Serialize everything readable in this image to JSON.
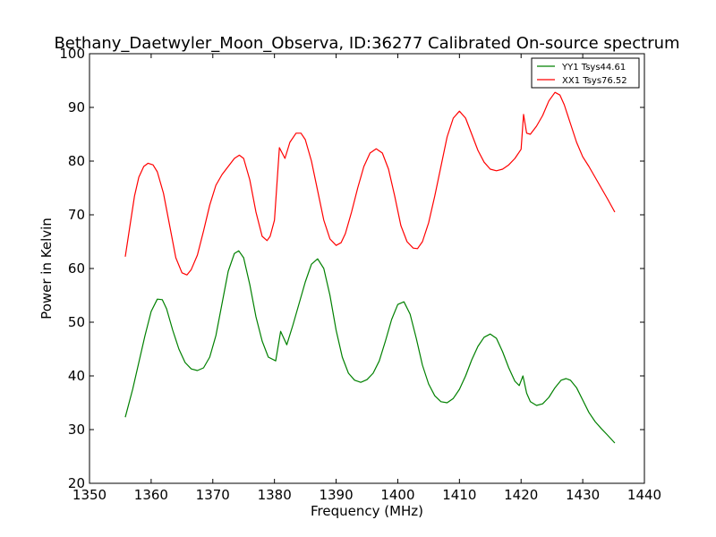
{
  "chart_data": {
    "type": "line",
    "title": "Bethany_Daetwyler_Moon_Observa, ID:36277 Calibrated On-source spectrum",
    "xlabel": "Frequency (MHz)",
    "ylabel": "Power in Kelvin",
    "xlim": [
      1350,
      1440
    ],
    "ylim": [
      20,
      100
    ],
    "xticks": [
      1350,
      1360,
      1370,
      1380,
      1390,
      1400,
      1410,
      1420,
      1430,
      1440
    ],
    "yticks": [
      20,
      30,
      40,
      50,
      60,
      70,
      80,
      90,
      100
    ],
    "grid": false,
    "legend_position": "top-right",
    "series": [
      {
        "name": "YY1 Tsys44.61",
        "color": "#008000",
        "points": [
          [
            1355.8,
            32.3
          ],
          [
            1357.0,
            37.5
          ],
          [
            1358.0,
            42.5
          ],
          [
            1359.0,
            47.5
          ],
          [
            1360.0,
            52.0
          ],
          [
            1361.0,
            54.3
          ],
          [
            1361.8,
            54.2
          ],
          [
            1362.5,
            52.5
          ],
          [
            1363.5,
            48.5
          ],
          [
            1364.5,
            45.0
          ],
          [
            1365.5,
            42.5
          ],
          [
            1366.5,
            41.3
          ],
          [
            1367.5,
            41.0
          ],
          [
            1368.5,
            41.5
          ],
          [
            1369.5,
            43.5
          ],
          [
            1370.5,
            47.5
          ],
          [
            1371.5,
            53.5
          ],
          [
            1372.5,
            59.5
          ],
          [
            1373.5,
            62.8
          ],
          [
            1374.2,
            63.3
          ],
          [
            1375.0,
            62.0
          ],
          [
            1376.0,
            57.0
          ],
          [
            1377.0,
            51.0
          ],
          [
            1378.0,
            46.5
          ],
          [
            1379.0,
            43.5
          ],
          [
            1380.2,
            42.8
          ],
          [
            1381.0,
            48.3
          ],
          [
            1382.0,
            45.8
          ],
          [
            1383.0,
            49.5
          ],
          [
            1384.0,
            53.5
          ],
          [
            1385.0,
            57.5
          ],
          [
            1386.0,
            60.8
          ],
          [
            1387.0,
            61.8
          ],
          [
            1388.0,
            60.0
          ],
          [
            1389.0,
            55.0
          ],
          [
            1390.0,
            48.5
          ],
          [
            1391.0,
            43.5
          ],
          [
            1392.0,
            40.5
          ],
          [
            1393.0,
            39.2
          ],
          [
            1394.0,
            38.8
          ],
          [
            1395.0,
            39.3
          ],
          [
            1396.0,
            40.5
          ],
          [
            1397.0,
            42.8
          ],
          [
            1398.0,
            46.5
          ],
          [
            1399.0,
            50.5
          ],
          [
            1400.0,
            53.3
          ],
          [
            1401.0,
            53.8
          ],
          [
            1402.0,
            51.5
          ],
          [
            1403.0,
            47.0
          ],
          [
            1404.0,
            42.0
          ],
          [
            1405.0,
            38.5
          ],
          [
            1406.0,
            36.3
          ],
          [
            1407.0,
            35.2
          ],
          [
            1408.0,
            35.0
          ],
          [
            1409.0,
            35.8
          ],
          [
            1410.0,
            37.5
          ],
          [
            1411.0,
            40.0
          ],
          [
            1412.0,
            43.0
          ],
          [
            1413.0,
            45.5
          ],
          [
            1414.0,
            47.2
          ],
          [
            1415.0,
            47.8
          ],
          [
            1416.0,
            47.0
          ],
          [
            1417.0,
            44.5
          ],
          [
            1418.0,
            41.5
          ],
          [
            1419.0,
            39.0
          ],
          [
            1419.7,
            38.2
          ],
          [
            1420.3,
            40.0
          ],
          [
            1420.9,
            36.8
          ],
          [
            1421.5,
            35.2
          ],
          [
            1422.5,
            34.5
          ],
          [
            1423.5,
            34.8
          ],
          [
            1424.5,
            36.0
          ],
          [
            1425.5,
            37.8
          ],
          [
            1426.5,
            39.2
          ],
          [
            1427.3,
            39.5
          ],
          [
            1428.0,
            39.2
          ],
          [
            1429.0,
            37.8
          ],
          [
            1430.0,
            35.5
          ],
          [
            1431.0,
            33.2
          ],
          [
            1432.0,
            31.5
          ],
          [
            1433.0,
            30.2
          ],
          [
            1434.0,
            29.0
          ],
          [
            1435.2,
            27.5
          ]
        ]
      },
      {
        "name": "XX1 Tsys76.52",
        "color": "#ff0000",
        "points": [
          [
            1355.8,
            62.2
          ],
          [
            1356.5,
            67.5
          ],
          [
            1357.3,
            73.5
          ],
          [
            1358.0,
            77.0
          ],
          [
            1358.8,
            79.0
          ],
          [
            1359.5,
            79.6
          ],
          [
            1360.3,
            79.3
          ],
          [
            1361.0,
            78.0
          ],
          [
            1362.0,
            74.0
          ],
          [
            1363.0,
            68.0
          ],
          [
            1364.0,
            62.0
          ],
          [
            1365.0,
            59.2
          ],
          [
            1365.8,
            58.8
          ],
          [
            1366.5,
            59.8
          ],
          [
            1367.5,
            62.5
          ],
          [
            1368.5,
            67.0
          ],
          [
            1369.5,
            71.8
          ],
          [
            1370.5,
            75.5
          ],
          [
            1371.5,
            77.5
          ],
          [
            1372.5,
            79.0
          ],
          [
            1373.5,
            80.5
          ],
          [
            1374.3,
            81.1
          ],
          [
            1375.0,
            80.5
          ],
          [
            1376.0,
            76.5
          ],
          [
            1377.0,
            70.5
          ],
          [
            1378.0,
            66.0
          ],
          [
            1378.8,
            65.2
          ],
          [
            1379.3,
            66.0
          ],
          [
            1380.0,
            69.0
          ],
          [
            1380.8,
            82.5
          ],
          [
            1381.7,
            80.5
          ],
          [
            1382.5,
            83.5
          ],
          [
            1383.5,
            85.2
          ],
          [
            1384.3,
            85.2
          ],
          [
            1385.0,
            84.0
          ],
          [
            1386.0,
            80.0
          ],
          [
            1387.0,
            74.5
          ],
          [
            1388.0,
            69.0
          ],
          [
            1389.0,
            65.5
          ],
          [
            1390.0,
            64.3
          ],
          [
            1390.8,
            64.8
          ],
          [
            1391.5,
            66.5
          ],
          [
            1392.5,
            70.5
          ],
          [
            1393.5,
            75.0
          ],
          [
            1394.5,
            79.0
          ],
          [
            1395.5,
            81.5
          ],
          [
            1396.5,
            82.3
          ],
          [
            1397.5,
            81.5
          ],
          [
            1398.5,
            78.5
          ],
          [
            1399.5,
            73.5
          ],
          [
            1400.5,
            68.0
          ],
          [
            1401.5,
            65.0
          ],
          [
            1402.5,
            63.8
          ],
          [
            1403.2,
            63.7
          ],
          [
            1404.0,
            65.0
          ],
          [
            1405.0,
            68.5
          ],
          [
            1406.0,
            73.5
          ],
          [
            1407.0,
            79.0
          ],
          [
            1408.0,
            84.5
          ],
          [
            1409.0,
            88.0
          ],
          [
            1410.0,
            89.3
          ],
          [
            1411.0,
            88.0
          ],
          [
            1412.0,
            85.0
          ],
          [
            1413.0,
            82.0
          ],
          [
            1414.0,
            79.8
          ],
          [
            1415.0,
            78.5
          ],
          [
            1416.0,
            78.2
          ],
          [
            1417.0,
            78.5
          ],
          [
            1418.0,
            79.3
          ],
          [
            1419.0,
            80.5
          ],
          [
            1420.0,
            82.2
          ],
          [
            1420.4,
            88.7
          ],
          [
            1420.9,
            85.2
          ],
          [
            1421.5,
            85.0
          ],
          [
            1422.5,
            86.5
          ],
          [
            1423.5,
            88.5
          ],
          [
            1424.5,
            91.2
          ],
          [
            1425.5,
            92.8
          ],
          [
            1426.3,
            92.3
          ],
          [
            1427.0,
            90.5
          ],
          [
            1428.0,
            87.0
          ],
          [
            1429.0,
            83.5
          ],
          [
            1430.0,
            80.8
          ],
          [
            1431.0,
            79.0
          ],
          [
            1432.0,
            77.0
          ],
          [
            1433.0,
            75.0
          ],
          [
            1434.0,
            73.0
          ],
          [
            1435.2,
            70.5
          ]
        ]
      }
    ]
  }
}
